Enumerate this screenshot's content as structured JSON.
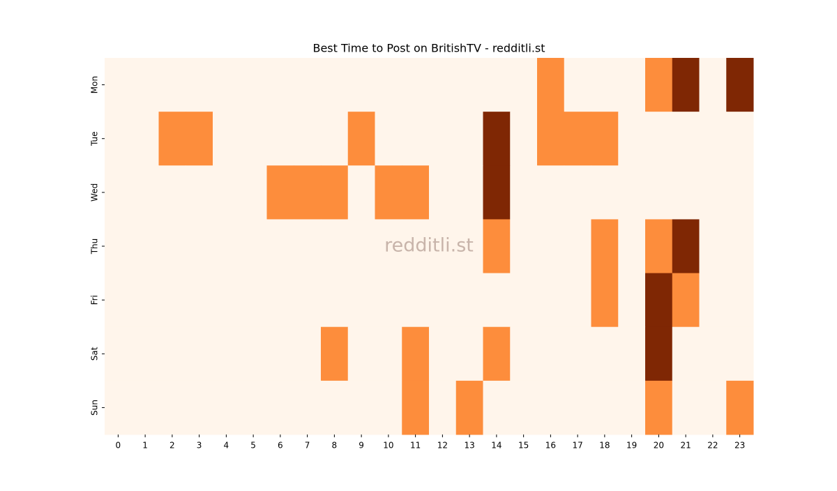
{
  "chart_data": {
    "type": "heatmap",
    "title": "Best Time to Post on BritishTV - redditli.st",
    "watermark": "redditli.st",
    "x_categories": [
      0,
      1,
      2,
      3,
      4,
      5,
      6,
      7,
      8,
      9,
      10,
      11,
      12,
      13,
      14,
      15,
      16,
      17,
      18,
      19,
      20,
      21,
      22,
      23
    ],
    "y_categories": [
      "Mon",
      "Tue",
      "Wed",
      "Thu",
      "Fri",
      "Sat",
      "Sun"
    ],
    "values": [
      [
        0,
        0,
        0,
        0,
        0,
        0,
        0,
        0,
        0,
        0,
        0,
        0,
        0,
        0,
        0,
        0,
        1,
        0,
        0,
        0,
        1,
        2,
        0,
        2
      ],
      [
        0,
        0,
        1,
        1,
        0,
        0,
        0,
        0,
        0,
        1,
        0,
        0,
        0,
        0,
        2,
        0,
        1,
        1,
        1,
        0,
        0,
        0,
        0,
        0
      ],
      [
        0,
        0,
        0,
        0,
        0,
        0,
        1,
        1,
        1,
        0,
        1,
        1,
        0,
        0,
        2,
        0,
        0,
        0,
        0,
        0,
        0,
        0,
        0,
        0
      ],
      [
        0,
        0,
        0,
        0,
        0,
        0,
        0,
        0,
        0,
        0,
        0,
        0,
        0,
        0,
        1,
        0,
        0,
        0,
        1,
        0,
        1,
        2,
        0,
        0
      ],
      [
        0,
        0,
        0,
        0,
        0,
        0,
        0,
        0,
        0,
        0,
        0,
        0,
        0,
        0,
        0,
        0,
        0,
        0,
        1,
        0,
        2,
        1,
        0,
        0
      ],
      [
        0,
        0,
        0,
        0,
        0,
        0,
        0,
        0,
        1,
        0,
        0,
        1,
        0,
        0,
        1,
        0,
        0,
        0,
        0,
        0,
        2,
        0,
        0,
        0
      ],
      [
        0,
        0,
        0,
        0,
        0,
        0,
        0,
        0,
        0,
        0,
        0,
        1,
        0,
        1,
        0,
        0,
        0,
        0,
        0,
        0,
        1,
        0,
        0,
        1
      ]
    ],
    "zlim": [
      0,
      2
    ],
    "colorscale": [
      "#fff5eb",
      "#fd8d3c",
      "#7f2704"
    ]
  }
}
